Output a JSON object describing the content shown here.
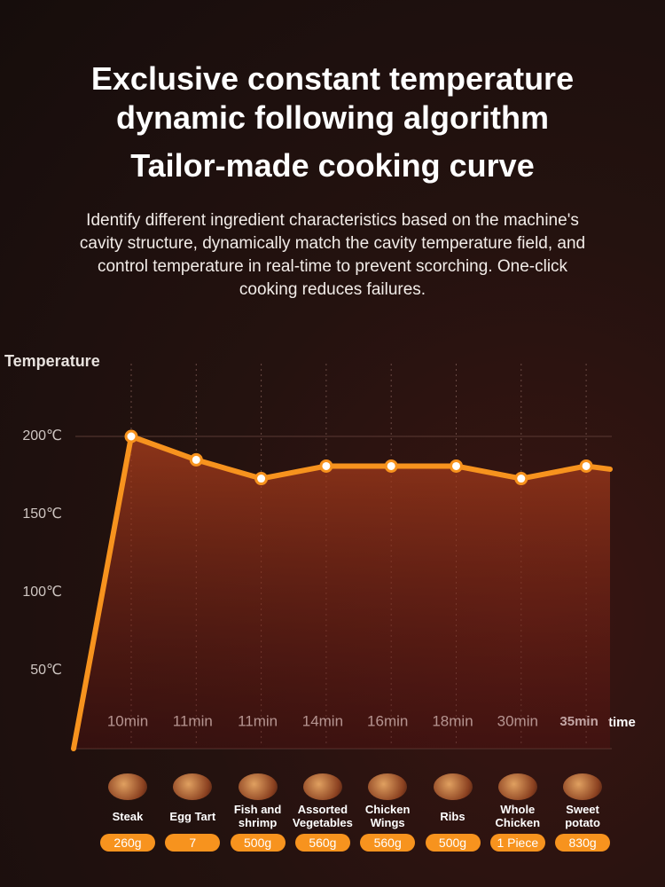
{
  "chart_data": {
    "type": "line",
    "title": [
      "Exclusive constant temperature",
      "dynamic following algorithm",
      "Tailor-made cooking curve"
    ],
    "subtitle": "Identify different ingredient characteristics based on the machine's cavity structure, dynamically match the cavity temperature field, and control temperature in real-time to prevent scorching. One-click cooking reduces failures.",
    "ylabel": "Temperature",
    "xlabel": "time",
    "categories": [
      null,
      "10min",
      "11min",
      "11min",
      "14min",
      "16min",
      "18min",
      "30min",
      "35min",
      null
    ],
    "series": [
      {
        "color": "#f7931e",
        "values": [
          0,
          200,
          185,
          173,
          181,
          181,
          181,
          173,
          181,
          179
        ]
      }
    ],
    "ylim": [
      0,
      240
    ],
    "yticks": [
      {
        "value": 50,
        "label": "50℃"
      },
      {
        "value": 100,
        "label": "100℃"
      },
      {
        "value": 150,
        "label": "150℃"
      },
      {
        "value": 200,
        "label": "200℃"
      }
    ],
    "grid": true
  },
  "foods": [
    {
      "name": "Steak",
      "amount": "260g"
    },
    {
      "name": "Egg Tart",
      "amount": "7"
    },
    {
      "name": "Fish and shrimp",
      "amount": "500g"
    },
    {
      "name": "Assorted Vegetables",
      "amount": "560g"
    },
    {
      "name": "Chicken Wings",
      "amount": "560g"
    },
    {
      "name": "Ribs",
      "amount": "500g"
    },
    {
      "name": "Whole Chicken",
      "amount": "1 Piece"
    },
    {
      "name": "Sweet potato",
      "amount": "830g"
    }
  ]
}
